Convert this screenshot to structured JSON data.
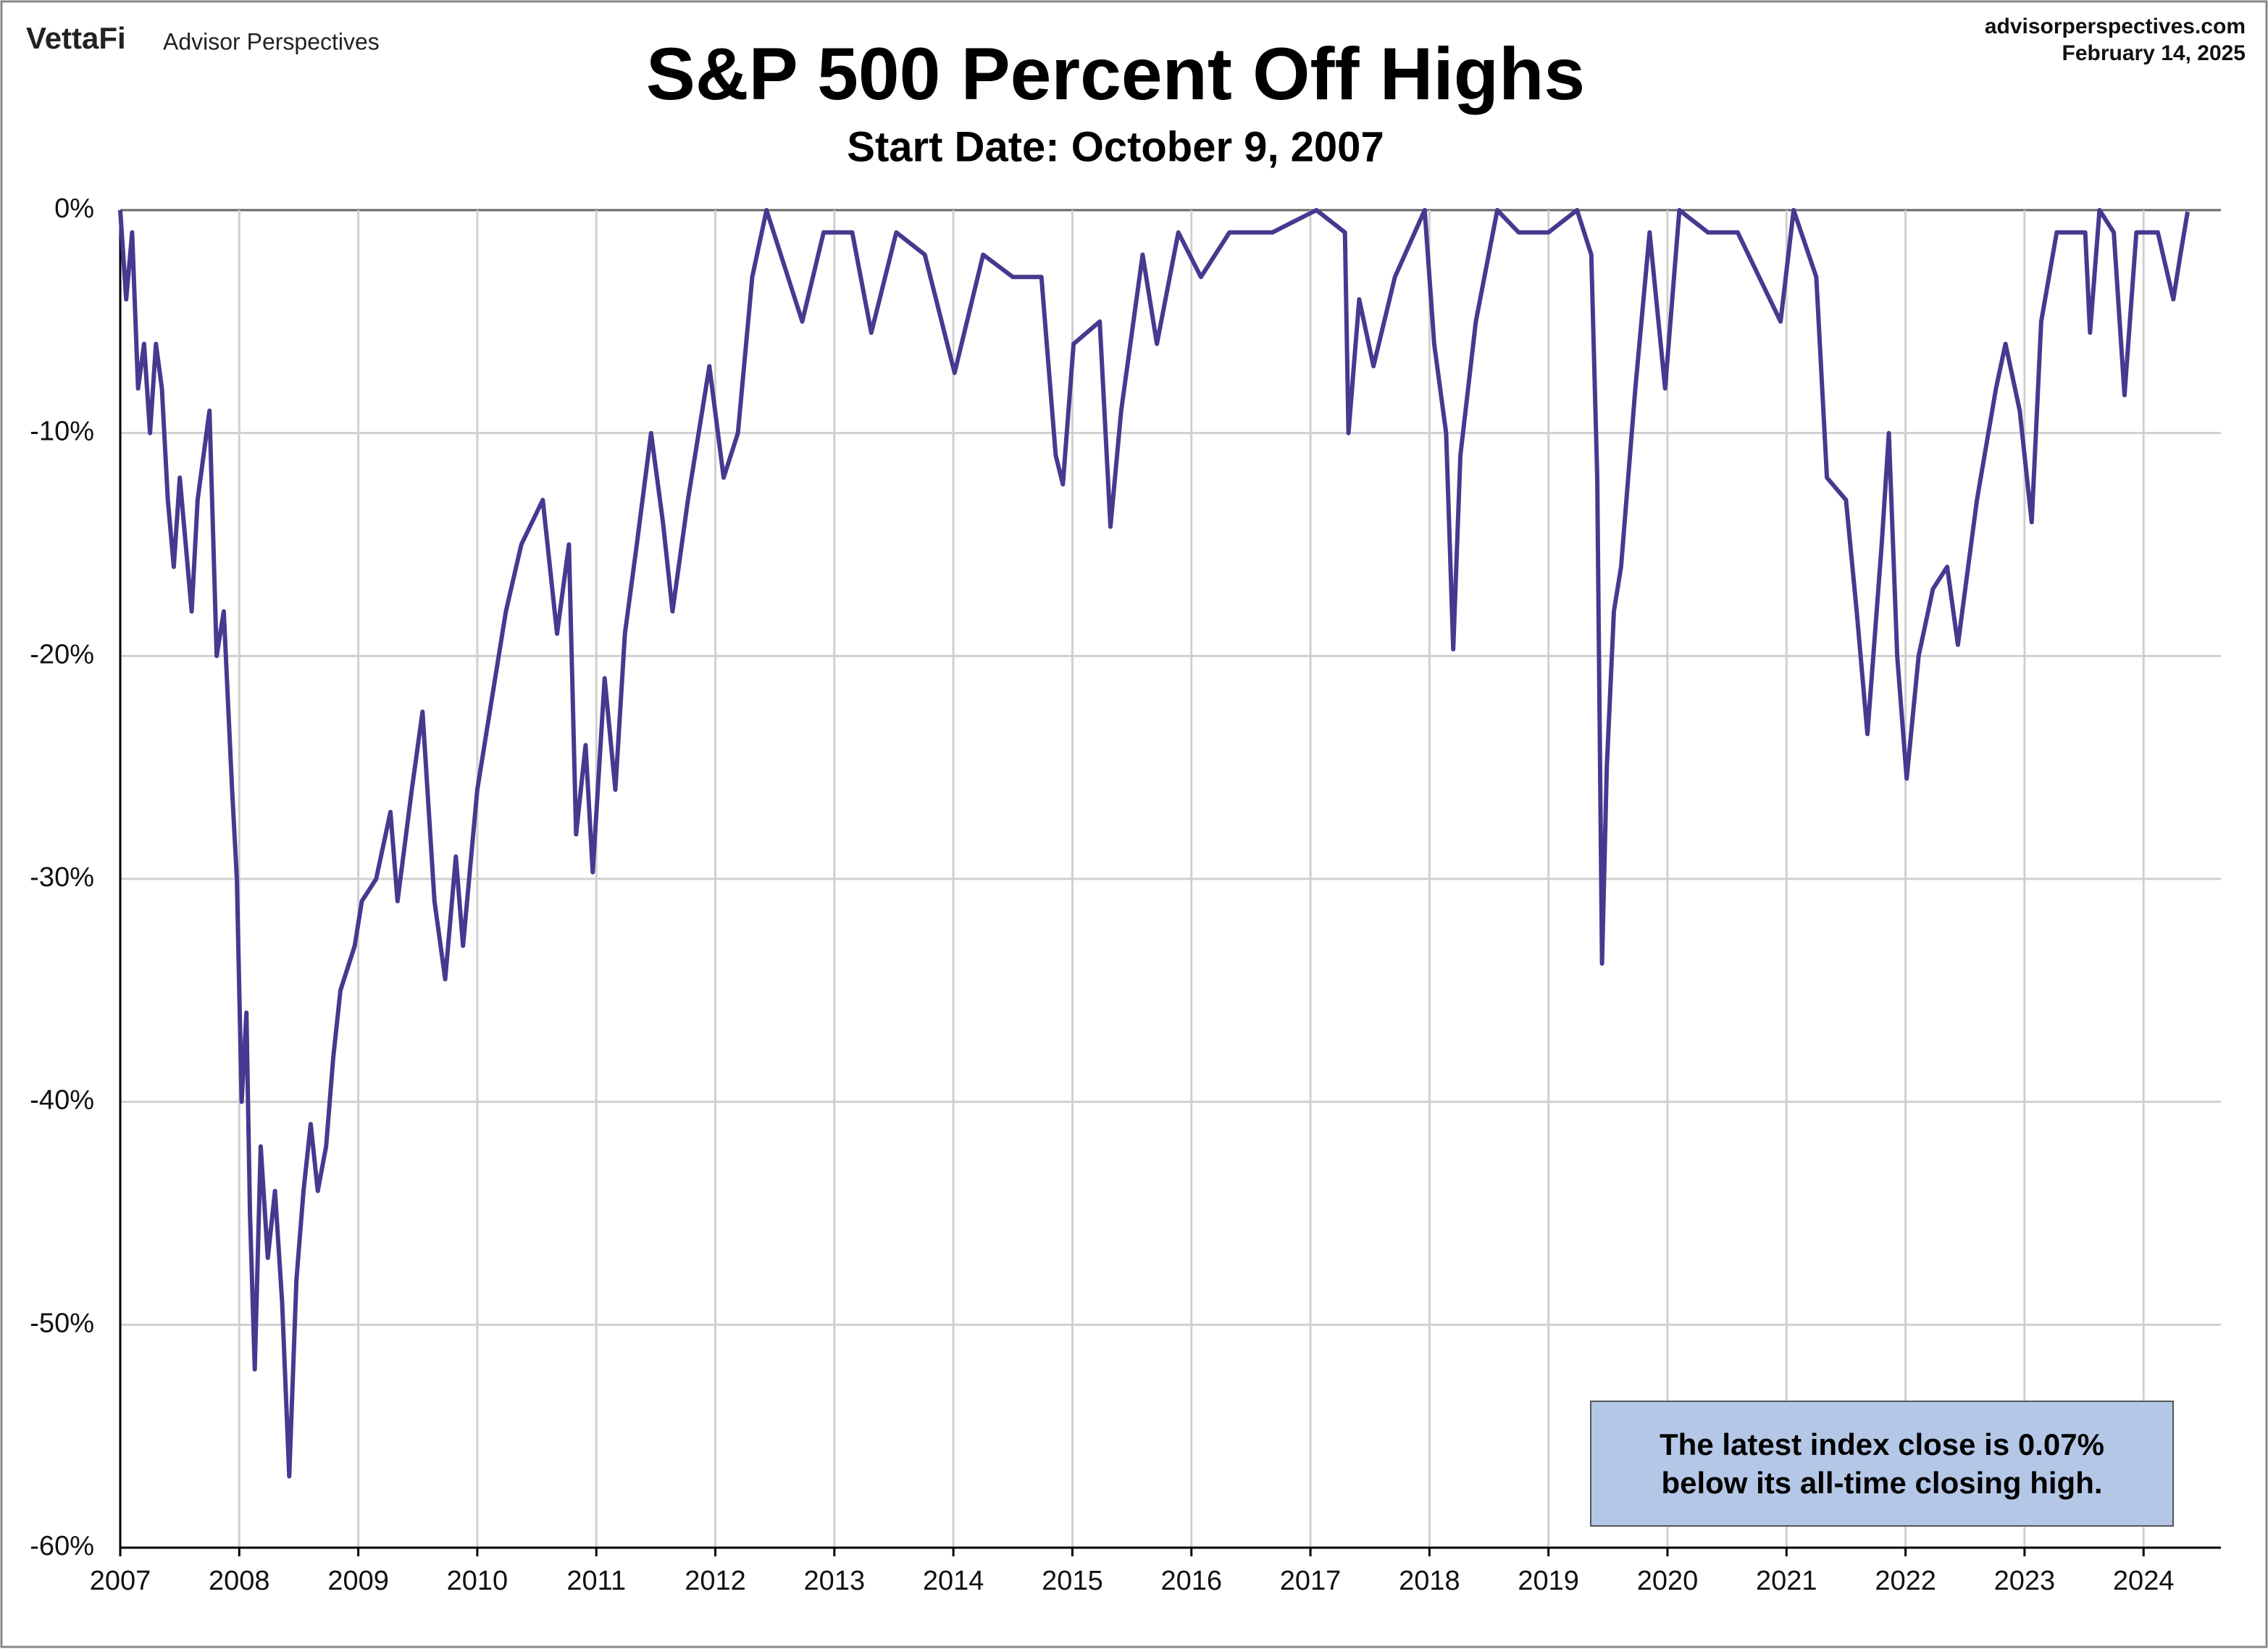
{
  "header": {
    "brand": "VettaFi",
    "publisher": "Advisor Perspectives",
    "site": "advisorperspectives.com",
    "date": "February 14, 2025"
  },
  "chart_data": {
    "type": "line",
    "title": "S&P 500 Percent Off Highs",
    "subtitle": "Start Date: October 9, 2007",
    "annotation": [
      "The latest index close is 0.07%",
      "below its all-time closing high."
    ],
    "color": "#46398f",
    "grid": true,
    "xlim": [
      2007,
      2024.65
    ],
    "xticks": [
      2007,
      2008,
      2009,
      2010,
      2011,
      2012,
      2013,
      2014,
      2015,
      2016,
      2017,
      2018,
      2019,
      2020,
      2021,
      2022,
      2023,
      2024
    ],
    "ylim": [
      -60,
      0
    ],
    "yticks": [
      {
        "value": 0,
        "label": "0%"
      },
      {
        "value": -10,
        "label": "-10%"
      },
      {
        "value": -20,
        "label": "-20%"
      },
      {
        "value": -30,
        "label": "-30%"
      },
      {
        "value": -40,
        "label": "-40%"
      },
      {
        "value": -50,
        "label": "-50%"
      },
      {
        "value": -60,
        "label": "-60%"
      }
    ],
    "x": [
      2007.0,
      2007.05,
      2007.1,
      2007.15,
      2007.2,
      2007.25,
      2007.3,
      2007.35,
      2007.4,
      2007.45,
      2007.5,
      2007.55,
      2007.6,
      2007.65,
      2007.7,
      2007.75,
      2007.81,
      2007.87,
      2007.94,
      2007.98,
      2008.02,
      2008.06,
      2008.09,
      2008.13,
      2008.18,
      2008.24,
      2008.3,
      2008.36,
      2008.42,
      2008.48,
      2008.54,
      2008.6,
      2008.66,
      2008.73,
      2008.79,
      2008.85,
      2008.97,
      2009.03,
      2009.15,
      2009.27,
      2009.33,
      2009.45,
      2009.54,
      2009.64,
      2009.73,
      2009.82,
      2009.88,
      2010.0,
      2010.12,
      2010.24,
      2010.37,
      2010.55,
      2010.67,
      2010.77,
      2010.83,
      2010.91,
      2010.97,
      2011.07,
      2011.16,
      2011.24,
      2011.34,
      2011.46,
      2011.56,
      2011.64,
      2011.77,
      2011.95,
      2012.07,
      2012.19,
      2012.31,
      2012.43,
      2012.55,
      2012.73,
      2012.91,
      2013.15,
      2013.31,
      2013.52,
      2013.76,
      2014.01,
      2014.25,
      2014.5,
      2014.74,
      2014.86,
      2014.92,
      2015.01,
      2015.23,
      2015.32,
      2015.41,
      2015.59,
      2015.71,
      2015.89,
      2016.08,
      2016.32,
      2016.68,
      2017.05,
      2017.29,
      2017.32,
      2017.41,
      2017.53,
      2017.71,
      2017.96,
      2018.04,
      2018.14,
      2018.2,
      2018.26,
      2018.39,
      2018.57,
      2018.75,
      2019.0,
      2019.24,
      2019.36,
      2019.41,
      2019.45,
      2019.49,
      2019.55,
      2019.61,
      2019.73,
      2019.85,
      2019.98,
      2020.1,
      2020.34,
      2020.59,
      2020.95,
      2021.06,
      2021.25,
      2021.34,
      2021.5,
      2021.59,
      2021.68,
      2021.8,
      2021.86,
      2021.93,
      2022.01,
      2022.11,
      2022.23,
      2022.35,
      2022.44,
      2022.6,
      2022.76,
      2022.84,
      2022.96,
      2023.06,
      2023.14,
      2023.27,
      2023.51,
      2023.55,
      2023.63,
      2023.75,
      2023.84,
      2023.94,
      2024.12,
      2024.25,
      2024.31,
      2024.37
    ],
    "values": [
      0,
      -4,
      -1,
      -8,
      -6,
      -10,
      -6,
      -8,
      -13,
      -16,
      -12,
      -15,
      -18,
      -13,
      -11,
      -9,
      -20,
      -18,
      -26,
      -30,
      -40,
      -36,
      -45,
      -52,
      -42,
      -47,
      -44,
      -49,
      -56.8,
      -48,
      -44,
      -41,
      -44,
      -42,
      -38,
      -35,
      -33,
      -31,
      -30,
      -27,
      -31,
      -26,
      -22.5,
      -31,
      -34.5,
      -29,
      -33,
      -26,
      -22,
      -18,
      -15,
      -13,
      -19,
      -15,
      -28,
      -24,
      -29.7,
      -21,
      -26,
      -19,
      -15,
      -10,
      -14,
      -18,
      -13,
      -7,
      -12,
      -10,
      -3,
      0,
      -2,
      -5,
      -1,
      -1,
      -5.5,
      -1,
      -2,
      -7.3,
      -2,
      -3,
      -3,
      -11,
      -12.3,
      -6,
      -5,
      -14.2,
      -9,
      -2,
      -6,
      -1,
      -3,
      -1,
      -1,
      0,
      -1,
      -10,
      -4,
      -7,
      -3,
      0,
      -6,
      -10,
      -19.7,
      -11,
      -5,
      0,
      -1,
      -1,
      0,
      -2,
      -12,
      -33.8,
      -25,
      -18,
      -16,
      -8,
      -1,
      -8,
      0,
      -1,
      -1,
      -5,
      0,
      -3,
      -12,
      -13,
      -18,
      -23.5,
      -15,
      -10,
      -20,
      -25.5,
      -20,
      -17,
      -16,
      -19.5,
      -13,
      -8,
      -6,
      -9,
      -14,
      -5,
      -1,
      -1,
      -5.5,
      0,
      -1,
      -8.3,
      -1,
      -1,
      -4,
      -2,
      -0.07
    ]
  }
}
